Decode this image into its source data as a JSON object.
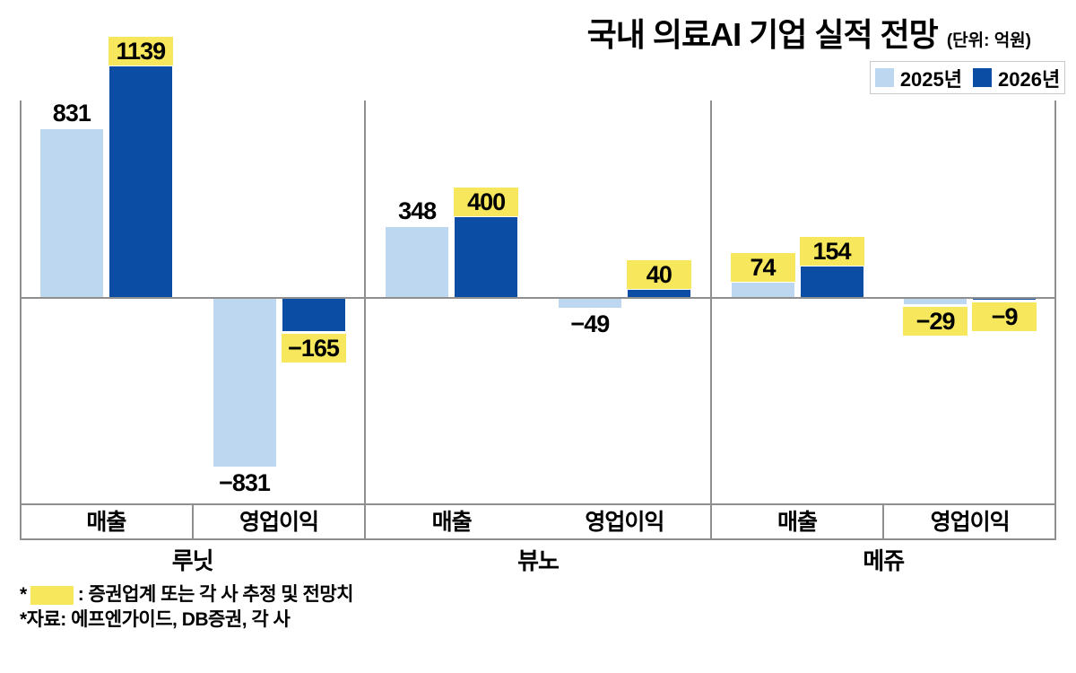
{
  "title": {
    "text": "국내 의료AI 기업 실적 전망",
    "unit": "(단위: 억원)"
  },
  "legend": [
    {
      "label": "2025년",
      "color": "#bdd7f0"
    },
    {
      "label": "2026년",
      "color": "#0b4da5"
    }
  ],
  "colors": {
    "series_2025": "#bdd7f0",
    "series_2026": "#0b4da5",
    "highlight_yellow": "#f6e75c",
    "line_gray": "#8f8f8f"
  },
  "chart_data": {
    "type": "bar",
    "title": "국내 의료AI 기업 실적 전망",
    "unit_label": "(단위: 억원)",
    "series_names": [
      "2025년",
      "2026년"
    ],
    "companies": [
      "루닛",
      "뷰노",
      "메쥬"
    ],
    "metrics": [
      "매출",
      "영업이익"
    ],
    "legend_position": "top-right",
    "grid": false,
    "baseline": 0,
    "highlight_meaning": "증권업계 또는 각 사 추정 및 전망치",
    "groups": [
      {
        "company": "루닛",
        "metric": "매출",
        "values": [
          831,
          1139
        ],
        "labels": [
          "831",
          "1139"
        ],
        "highlighted": [
          false,
          true
        ]
      },
      {
        "company": "루닛",
        "metric": "영업이익",
        "values": [
          -831,
          -165
        ],
        "labels": [
          "−831",
          "−165"
        ],
        "highlighted": [
          false,
          true
        ]
      },
      {
        "company": "뷰노",
        "metric": "매출",
        "values": [
          348,
          400
        ],
        "labels": [
          "348",
          "400"
        ],
        "highlighted": [
          false,
          true
        ]
      },
      {
        "company": "뷰노",
        "metric": "영업이익",
        "values": [
          -49,
          40
        ],
        "labels": [
          "−49",
          "40"
        ],
        "highlighted": [
          false,
          true
        ]
      },
      {
        "company": "메쥬",
        "metric": "매출",
        "values": [
          74,
          154
        ],
        "labels": [
          "74",
          "154"
        ],
        "highlighted": [
          true,
          true
        ]
      },
      {
        "company": "메쥬",
        "metric": "영업이익",
        "values": [
          -29,
          -9
        ],
        "labels": [
          "−29",
          "−9"
        ],
        "highlighted": [
          true,
          true
        ]
      }
    ]
  },
  "footnotes": {
    "line1_marker": "*",
    "line1_text": ": 증권업계 또는 각 사 추정 및 전망치",
    "line2": "*자료: 에프엔가이드, DB증권, 각 사"
  }
}
